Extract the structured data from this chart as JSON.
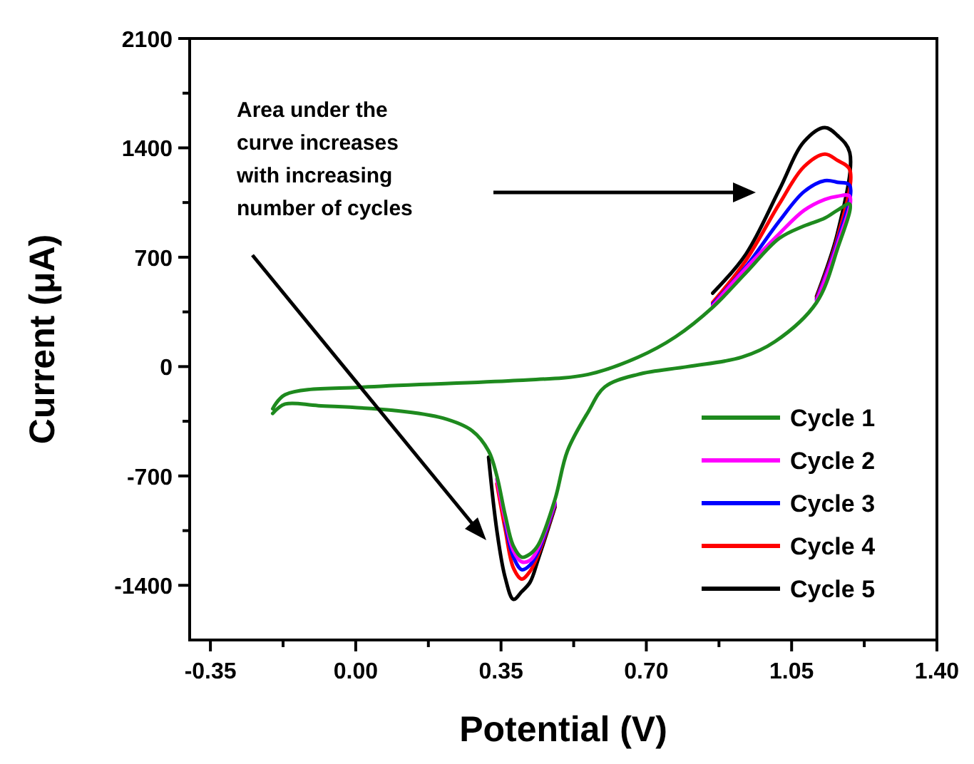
{
  "chart_data": {
    "type": "line",
    "xlabel": "Potential (V)",
    "ylabel": "Current (μA)",
    "xlim": [
      -0.4,
      1.4
    ],
    "ylim": [
      -1750,
      2100
    ],
    "xticks": [
      -0.35,
      {
        "value": -0.175,
        "label": null
      },
      {
        "value": 0,
        "label": "0.00"
      },
      {
        "value": 0.175,
        "label": null
      },
      0.35,
      {
        "value": 0.525,
        "label": null
      },
      {
        "value": 0.7,
        "label": "0.70"
      },
      {
        "value": 0.875,
        "label": null
      },
      1.05,
      {
        "value": 1.225,
        "label": null
      },
      {
        "value": 1.4,
        "label": "1.40"
      }
    ],
    "yticks": [
      -1400,
      {
        "value": -1050,
        "label": null
      },
      -700,
      {
        "value": -350,
        "label": null
      },
      0,
      {
        "value": 350,
        "label": null
      },
      700,
      {
        "value": 1050,
        "label": null
      },
      1400,
      {
        "value": 1750,
        "label": null
      },
      2100
    ],
    "x": [
      -0.2,
      -0.17,
      0.03,
      0.38,
      0.56,
      0.68,
      0.77,
      0.86,
      0.94,
      1.02,
      1.08,
      1.13,
      1.16,
      1.19,
      1.16,
      1.11,
      1.01,
      0.93,
      0.8,
      0.68,
      0.6,
      0.56,
      0.51,
      0.48,
      0.44,
      0.42,
      0.4,
      0.38,
      0.36,
      0.34,
      0.32,
      0.28,
      0.21,
      0.09,
      -0.09,
      -0.17,
      -0.2
    ],
    "series": [
      {
        "name": "Cycle 1",
        "color": "#1e8a1e",
        "values": [
          -270,
          -180,
          -130,
          -90,
          -50,
          60,
          190,
          380,
          600,
          820,
          900,
          950,
          1000,
          1040,
          750,
          410,
          160,
          60,
          0,
          -50,
          -130,
          -290,
          -540,
          -850,
          -1140,
          -1200,
          -1220,
          -1150,
          -950,
          -700,
          -540,
          -410,
          -330,
          -280,
          -250,
          -240,
          -300
        ]
      },
      {
        "name": "Cycle 2",
        "color": "#ff00ff",
        "values": [
          null,
          null,
          null,
          null,
          null,
          null,
          null,
          390,
          630,
          850,
          1000,
          1070,
          1090,
          1090,
          780,
          420,
          null,
          null,
          null,
          null,
          null,
          null,
          null,
          -870,
          -1160,
          -1240,
          -1250,
          -1180,
          -980,
          -720,
          null,
          null,
          null,
          null,
          null,
          null,
          null
        ]
      },
      {
        "name": "Cycle 3",
        "color": "#0000ff",
        "values": [
          null,
          null,
          null,
          null,
          null,
          null,
          null,
          400,
          640,
          930,
          1120,
          1190,
          1180,
          1160,
          800,
          430,
          null,
          null,
          null,
          null,
          null,
          null,
          null,
          -880,
          -1180,
          -1270,
          -1300,
          -1220,
          -1000,
          null,
          null,
          null,
          null,
          null,
          null,
          null,
          null
        ]
      },
      {
        "name": "Cycle 4",
        "color": "#ff0000",
        "values": [
          null,
          null,
          null,
          null,
          null,
          null,
          null,
          410,
          680,
          1040,
          1280,
          1360,
          1320,
          1260,
          820,
          440,
          null,
          null,
          null,
          null,
          null,
          null,
          null,
          -890,
          -1200,
          -1310,
          -1360,
          -1290,
          -1040,
          -750,
          null,
          null,
          null,
          null,
          null,
          null,
          null
        ]
      },
      {
        "name": "Cycle 5",
        "color": "#000000",
        "values": [
          null,
          null,
          null,
          null,
          null,
          null,
          null,
          470,
          720,
          1130,
          1440,
          1530,
          1480,
          1370,
          850,
          450,
          null,
          null,
          null,
          null,
          null,
          null,
          null,
          -900,
          -1230,
          -1380,
          -1440,
          -1490,
          -1350,
          -1050,
          -580,
          null,
          null,
          null,
          null,
          null,
          null
        ]
      }
    ],
    "legend": "bottom right",
    "marker": "none",
    "line_style": "solid",
    "grid": false,
    "annotations": [
      "Area under the curve increases with increasing number of cycles"
    ]
  }
}
